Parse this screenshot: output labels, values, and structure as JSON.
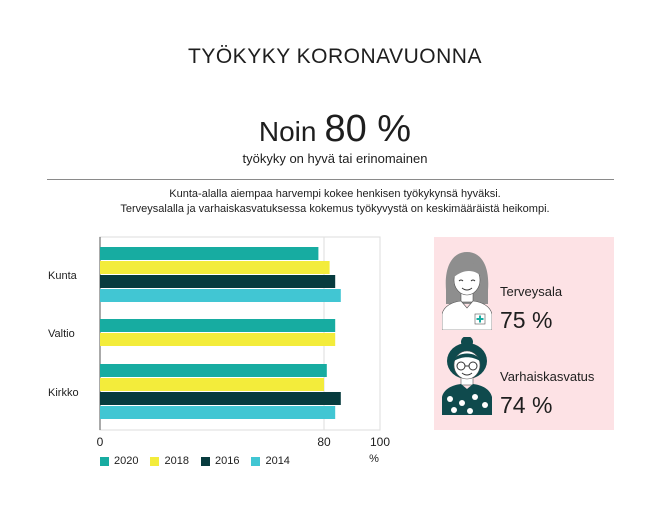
{
  "title": "TYÖKYKY KORONAVUONNA",
  "headline": {
    "prefix": "Noin",
    "value": "80 %"
  },
  "subtitle": "työkyky on hyvä tai erinomainen",
  "description": [
    "Kunta-alalla aiempaa harvempi kokee henkisen työkykynsä hyväksi.",
    "Terveysalalla ja varhaiskasvatuksessa kokemus työkyvystä on keskimääräistä heikompi."
  ],
  "chart_data": {
    "type": "bar",
    "orientation": "horizontal",
    "categories": [
      "Kunta",
      "Valtio",
      "Kirkko"
    ],
    "series": [
      {
        "name": "2020",
        "color": "#17aca1",
        "values": [
          78,
          84,
          81
        ]
      },
      {
        "name": "2018",
        "color": "#f3ec3b",
        "values": [
          82,
          84,
          80
        ]
      },
      {
        "name": "2016",
        "color": "#073b3e",
        "values": [
          84,
          null,
          86
        ]
      },
      {
        "name": "2014",
        "color": "#41c6d3",
        "values": [
          86,
          null,
          84
        ]
      }
    ],
    "xlim": [
      0,
      100
    ],
    "xticks": [
      0,
      80,
      100
    ],
    "xlabel": "%",
    "grid": true,
    "legend": "bottom"
  },
  "stats": [
    {
      "label": "Terveysala",
      "value": "75 %",
      "icon": "nurse-icon"
    },
    {
      "label": "Varhaiskasvatus",
      "value": "74 %",
      "icon": "teacher-icon"
    }
  ],
  "colors": {
    "panel": "#fde2e5",
    "grid": "#dddddd",
    "axis": "#555555"
  }
}
